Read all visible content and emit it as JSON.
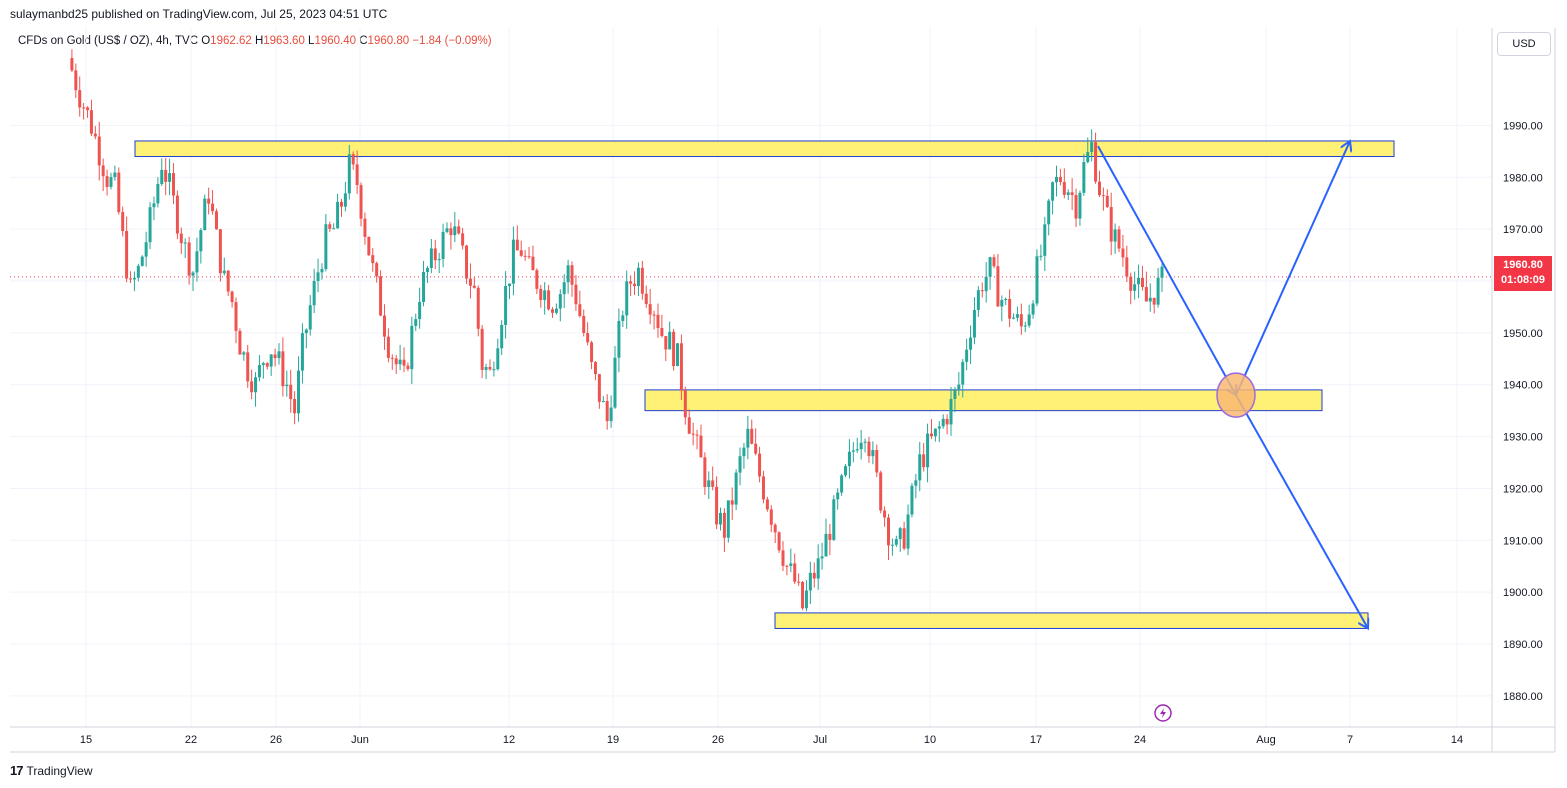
{
  "header": {
    "publisher_line": "sulaymanbd25 published on TradingView.com, Jul 25, 2023 04:51 UTC"
  },
  "legend": {
    "symbol": "CFDs on Gold (US$ / OZ), 4h, TVC",
    "o_label": "O",
    "o_value": "1962.62",
    "h_label": "H",
    "h_value": "1963.60",
    "l_label": "L",
    "l_value": "1960.40",
    "c_label": "C",
    "c_value": "1960.80",
    "change": "−1.84 (−0.09%)"
  },
  "currency_button": "USD",
  "last_price": {
    "price": "1960.80",
    "countdown": "01:08:09"
  },
  "footer": {
    "brand": "TradingView",
    "logo": "17"
  },
  "colors": {
    "up": "#26a69a",
    "down": "#ef5350",
    "zone_fill": "#fff176",
    "zone_border": "#1e3fd1",
    "arrow": "#2962ff",
    "circle_fill": "#f9b872",
    "circle_border": "#9c6ade",
    "last_price_bg": "#f23645"
  },
  "chart_data": {
    "type": "candlestick",
    "y_axis": {
      "min": 1874,
      "max": 2003,
      "ticks": [
        "1990.00",
        "1980.00",
        "1970.00",
        "1960.00",
        "1950.00",
        "1940.00",
        "1930.00",
        "1920.00",
        "1910.00",
        "1900.00",
        "1890.00",
        "1880.00"
      ]
    },
    "x_axis": {
      "ticks": [
        "15",
        "22",
        "26",
        "Jun",
        "12",
        "19",
        "26",
        "Jul",
        "10",
        "17",
        "24",
        "Aug",
        "7",
        "14"
      ]
    },
    "close_path": [
      [
        0,
        2003
      ],
      [
        3,
        1996
      ],
      [
        6,
        1990
      ],
      [
        8,
        1985
      ],
      [
        10,
        1980
      ],
      [
        12,
        1978
      ],
      [
        14,
        1968
      ],
      [
        16,
        1958
      ],
      [
        18,
        1962
      ],
      [
        20,
        1968
      ],
      [
        22,
        1975
      ],
      [
        24,
        1983
      ],
      [
        26,
        1978
      ],
      [
        28,
        1972
      ],
      [
        30,
        1966
      ],
      [
        32,
        1962
      ],
      [
        34,
        1970
      ],
      [
        36,
        1977
      ],
      [
        38,
        1968
      ],
      [
        40,
        1960
      ],
      [
        42,
        1956
      ],
      [
        44,
        1948
      ],
      [
        46,
        1943
      ],
      [
        48,
        1940
      ],
      [
        50,
        1945
      ],
      [
        52,
        1947
      ],
      [
        54,
        1944
      ],
      [
        56,
        1940
      ],
      [
        58,
        1935
      ],
      [
        60,
        1947
      ],
      [
        62,
        1955
      ],
      [
        64,
        1962
      ],
      [
        66,
        1968
      ],
      [
        68,
        1970
      ],
      [
        70,
        1975
      ],
      [
        72,
        1982
      ],
      [
        74,
        1979
      ],
      [
        76,
        1970
      ],
      [
        78,
        1962
      ],
      [
        80,
        1955
      ],
      [
        82,
        1948
      ],
      [
        84,
        1944
      ],
      [
        86,
        1941
      ],
      [
        88,
        1950
      ],
      [
        90,
        1958
      ],
      [
        92,
        1962
      ],
      [
        94,
        1965
      ],
      [
        96,
        1968
      ],
      [
        98,
        1971
      ],
      [
        100,
        1967
      ],
      [
        102,
        1962
      ],
      [
        104,
        1958
      ],
      [
        106,
        1944
      ],
      [
        108,
        1942
      ],
      [
        110,
        1950
      ],
      [
        112,
        1958
      ],
      [
        114,
        1965
      ],
      [
        116,
        1966
      ],
      [
        118,
        1962
      ],
      [
        120,
        1960
      ],
      [
        122,
        1958
      ],
      [
        124,
        1956
      ],
      [
        126,
        1958
      ],
      [
        128,
        1962
      ],
      [
        130,
        1957
      ],
      [
        132,
        1950
      ],
      [
        134,
        1943
      ],
      [
        136,
        1938
      ],
      [
        138,
        1933
      ],
      [
        140,
        1944
      ],
      [
        142,
        1955
      ],
      [
        144,
        1960
      ],
      [
        146,
        1962
      ],
      [
        148,
        1958
      ],
      [
        150,
        1955
      ],
      [
        152,
        1950
      ],
      [
        154,
        1948
      ],
      [
        156,
        1945
      ],
      [
        158,
        1936
      ],
      [
        160,
        1930
      ],
      [
        162,
        1925
      ],
      [
        164,
        1920
      ],
      [
        166,
        1915
      ],
      [
        168,
        1912
      ],
      [
        170,
        1918
      ],
      [
        172,
        1925
      ],
      [
        174,
        1930
      ],
      [
        176,
        1925
      ],
      [
        178,
        1920
      ],
      [
        180,
        1915
      ],
      [
        182,
        1910
      ],
      [
        184,
        1905
      ],
      [
        186,
        1902
      ],
      [
        188,
        1897
      ],
      [
        190,
        1902
      ],
      [
        192,
        1905
      ],
      [
        194,
        1910
      ],
      [
        196,
        1915
      ],
      [
        198,
        1920
      ],
      [
        200,
        1925
      ],
      [
        202,
        1930
      ],
      [
        204,
        1932
      ],
      [
        206,
        1925
      ],
      [
        208,
        1918
      ],
      [
        210,
        1912
      ],
      [
        212,
        1908
      ],
      [
        214,
        1911
      ],
      [
        216,
        1918
      ],
      [
        218,
        1925
      ],
      [
        220,
        1928
      ],
      [
        222,
        1930
      ],
      [
        224,
        1933
      ],
      [
        226,
        1936
      ],
      [
        228,
        1940
      ],
      [
        230,
        1948
      ],
      [
        232,
        1955
      ],
      [
        234,
        1960
      ],
      [
        236,
        1962
      ],
      [
        238,
        1958
      ],
      [
        240,
        1955
      ],
      [
        242,
        1953
      ],
      [
        244,
        1951
      ],
      [
        246,
        1955
      ],
      [
        248,
        1962
      ],
      [
        250,
        1968
      ],
      [
        252,
        1978
      ],
      [
        254,
        1980
      ],
      [
        256,
        1978
      ],
      [
        258,
        1975
      ],
      [
        260,
        1982
      ],
      [
        262,
        1986
      ],
      [
        264,
        1978
      ],
      [
        266,
        1972
      ],
      [
        268,
        1968
      ],
      [
        270,
        1965
      ],
      [
        272,
        1961
      ],
      [
        274,
        1958
      ],
      [
        276,
        1956
      ],
      [
        278,
        1958
      ],
      [
        280,
        1960
      ]
    ],
    "n_steps": 280,
    "zones": [
      {
        "name": "resistance",
        "x_start": "May 18",
        "x_end": "Aug 9",
        "y_low": 1984,
        "y_high": 1987
      },
      {
        "name": "support-mid",
        "x_start": "Jun 21",
        "x_end": "Aug 5",
        "y_low": 1935,
        "y_high": 1939
      },
      {
        "name": "support-low",
        "x_start": "Jun 28",
        "x_end": "Aug 8",
        "y_low": 1893,
        "y_high": 1896
      }
    ],
    "projection": [
      {
        "from": [
          "Jul 20",
          1986
        ],
        "to": [
          "Jul 31",
          1938
        ]
      },
      {
        "from": [
          "Jul 31",
          1938
        ],
        "to": [
          "Aug 7",
          1987
        ]
      },
      {
        "from": [
          "Jul 31",
          1938
        ],
        "to": [
          "Aug 8",
          1893
        ]
      }
    ]
  }
}
